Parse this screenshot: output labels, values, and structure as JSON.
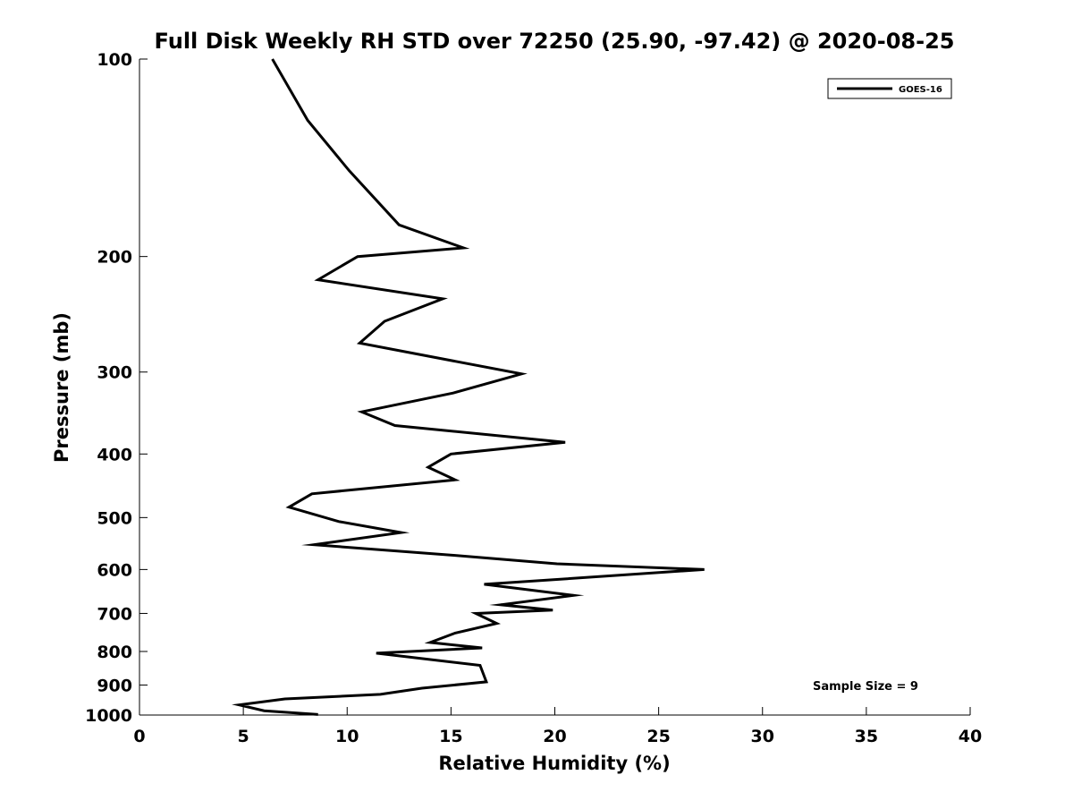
{
  "chart_data": {
    "type": "line",
    "title": "Full Disk Weekly RH STD over 72250 (25.90, -97.42) @ 2020-08-25",
    "xlabel": "Relative Humidity (%)",
    "ylabel": "Pressure (mb)",
    "xlim": [
      0,
      40
    ],
    "ylim": [
      1000,
      100
    ],
    "yscale": "log",
    "grid": false,
    "legend_position": "top-right",
    "x_ticks": [
      0,
      5,
      10,
      15,
      20,
      25,
      30,
      35,
      40
    ],
    "y_ticks": [
      100,
      200,
      300,
      400,
      500,
      600,
      700,
      800,
      900,
      1000
    ],
    "annotation": "Sample Size = 9",
    "series": [
      {
        "name": "GOES-16",
        "color": "#000000",
        "points": [
          [
            6.4,
            100
          ],
          [
            8.1,
            124
          ],
          [
            10.1,
            148
          ],
          [
            12.5,
            179
          ],
          [
            15.6,
            194
          ],
          [
            10.5,
            200
          ],
          [
            8.6,
            217
          ],
          [
            14.6,
            232
          ],
          [
            11.8,
            251
          ],
          [
            10.6,
            271
          ],
          [
            18.4,
            302
          ],
          [
            15.1,
            323
          ],
          [
            10.7,
            345
          ],
          [
            12.3,
            362
          ],
          [
            20.5,
            384
          ],
          [
            15.0,
            400
          ],
          [
            13.9,
            419
          ],
          [
            15.2,
            438
          ],
          [
            8.3,
            460
          ],
          [
            7.2,
            482
          ],
          [
            9.6,
            507
          ],
          [
            12.6,
            527
          ],
          [
            8.4,
            550
          ],
          [
            15.2,
            571
          ],
          [
            20.1,
            588
          ],
          [
            27.2,
            600
          ],
          [
            16.6,
            632
          ],
          [
            20.9,
            657
          ],
          [
            17.4,
            679
          ],
          [
            19.9,
            692
          ],
          [
            16.2,
            700
          ],
          [
            17.2,
            725
          ],
          [
            15.2,
            750
          ],
          [
            14.0,
            775
          ],
          [
            16.5,
            790
          ],
          [
            11.4,
            805
          ],
          [
            16.4,
            840
          ],
          [
            16.7,
            890
          ],
          [
            13.6,
            910
          ],
          [
            11.6,
            930
          ],
          [
            7.0,
            945
          ],
          [
            4.8,
            965
          ],
          [
            6.0,
            985
          ],
          [
            8.6,
            998
          ]
        ]
      }
    ]
  }
}
